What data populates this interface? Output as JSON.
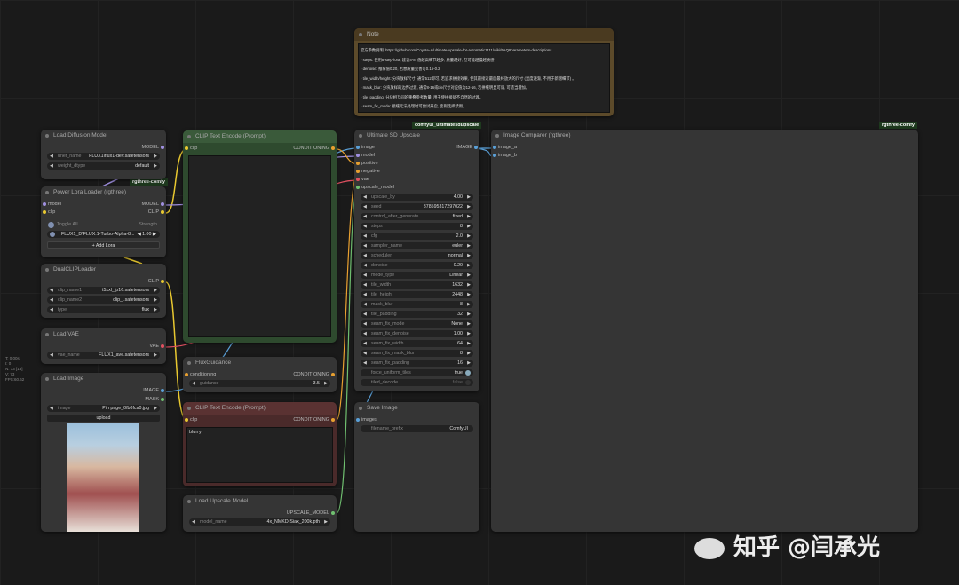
{
  "canvas_info": [
    "T: 0.00s",
    "I: 0",
    "N: 13 [13]",
    "V: 73",
    "FPS:60.62"
  ],
  "note": {
    "title": "Note",
    "lines": [
      "官方参数说明: https://github.com/Coyote-A/ultimate-upscale-for-automatic1111/wiki/FAQ#parameters-descriptions",
      "- steps: 使用8-step-lora, 建议4-8, 值越高细节越多, 质量越好, 但可能越慢越质感",
      "- denoise: 推荐值0.20, 若想质量完善可0.15-0.2",
      "- tile_width/height: 分块放样尺寸, 通常512即可, 若追求拼接效果, 使其最接近最后最终放大的尺寸 (显度逐渐, 不用于新增细节) 。",
      "- mask_blur: 分块放样的边界过渡, 通常8-16或tile尺寸对应值为12-16, 若拼缝明显可调, 可适当增加。",
      "- tile_padding: 分块相互间的重叠参考数量, 用于使拼接处不自然的过渡。",
      "- seam_fix_mode: 接缝无法处理时可尝试开启, 否则选择禁用。"
    ]
  },
  "badges": {
    "rgthree1": "rgthree-comfy",
    "usdu": "comfyui_ultimatesdupscale",
    "rgthree2": "rgthree-comfy"
  },
  "load_diffusion": {
    "title": "Load Diffusion Model",
    "out": "MODEL",
    "w": [
      {
        "k": "unet_name",
        "v": "FLUX1\\flux1-dev.safetensors"
      },
      {
        "k": "weight_dtype",
        "v": "default"
      }
    ]
  },
  "lora": {
    "title": "Power Lora Loader (rgthree)",
    "in": [
      "model",
      "clip"
    ],
    "out": [
      "MODEL",
      "CLIP"
    ],
    "toggle_all": "Toggle All",
    "strength": "Strength",
    "lora_name": "FLUX1_D\\FLUX.1-Turbo-Alpha-8...",
    "lora_strength": "1.00",
    "add": "+ Add Lora"
  },
  "dualclip": {
    "title": "DualCLIPLoader",
    "out": "CLIP",
    "w": [
      {
        "k": "clip_name1",
        "v": "t5xxl_fp16.safetensors"
      },
      {
        "k": "clip_name2",
        "v": "clip_l.safetensors"
      },
      {
        "k": "type",
        "v": "flux"
      }
    ]
  },
  "vae": {
    "title": "Load VAE",
    "out": "VAE",
    "w": [
      {
        "k": "vae_name",
        "v": "FLUX1_ave.safetensors"
      }
    ]
  },
  "load_image": {
    "title": "Load Image",
    "out": [
      "IMAGE",
      "MASK"
    ],
    "w": [
      {
        "k": "image",
        "v": "Pin page_0fb8fca0.jpg"
      }
    ],
    "upload": "upload"
  },
  "clip_pos": {
    "title": "CLIP Text Encode (Prompt)",
    "in": "clip",
    "out": "CONDITIONING",
    "text": ""
  },
  "flux_guidance": {
    "title": "FluxGuidance",
    "in": "conditioning",
    "out": "CONDITIONING",
    "w": [
      {
        "k": "guidance",
        "v": "3.5"
      }
    ]
  },
  "clip_neg": {
    "title": "CLIP Text Encode (Prompt)",
    "in": "clip",
    "out": "CONDITIONING",
    "text": "blurry"
  },
  "upscale_model": {
    "title": "Load Upscale Model",
    "out": "UPSCALE_MODEL",
    "w": [
      {
        "k": "model_name",
        "v": "4x_NMKD-Siax_200k.pth"
      }
    ]
  },
  "usdu": {
    "title": "Ultimate SD Upscale",
    "in": [
      "image",
      "model",
      "positive",
      "negative",
      "vae",
      "upscale_model"
    ],
    "out": "IMAGE",
    "w": [
      {
        "k": "upscale_by",
        "v": "4.00"
      },
      {
        "k": "seed",
        "v": "878595317297022"
      },
      {
        "k": "control_after_generate",
        "v": "fixed"
      },
      {
        "k": "steps",
        "v": "8"
      },
      {
        "k": "cfg",
        "v": "2.0"
      },
      {
        "k": "sampler_name",
        "v": "euler"
      },
      {
        "k": "scheduler",
        "v": "normal"
      },
      {
        "k": "denoise",
        "v": "0.20"
      },
      {
        "k": "mode_type",
        "v": "Linear"
      },
      {
        "k": "tile_width",
        "v": "1632"
      },
      {
        "k": "tile_height",
        "v": "2448"
      },
      {
        "k": "mask_blur",
        "v": "8"
      },
      {
        "k": "tile_padding",
        "v": "32"
      },
      {
        "k": "seam_fix_mode",
        "v": "None"
      },
      {
        "k": "seam_fix_denoise",
        "v": "1.00"
      },
      {
        "k": "seam_fix_width",
        "v": "64"
      },
      {
        "k": "seam_fix_mask_blur",
        "v": "8"
      },
      {
        "k": "seam_fix_padding",
        "v": "16"
      }
    ],
    "toggles": [
      {
        "k": "force_uniform_tiles",
        "v": "true",
        "on": true
      },
      {
        "k": "tiled_decode",
        "v": "false",
        "on": false
      }
    ]
  },
  "save": {
    "title": "Save Image",
    "in": "images",
    "w": [
      {
        "k": "filename_prefix",
        "v": "ComfyUI"
      }
    ]
  },
  "comparer": {
    "title": "Image Comparer (rgthree)",
    "in": [
      "image_a",
      "image_b"
    ]
  },
  "watermark": "知乎 @闫承光",
  "colors": {
    "positive_node": "#2e4a2e",
    "negative_node": "#4a2a2a",
    "note_node": "#5c4a2a",
    "clip_wire": "#e8c830",
    "image_wire": "#5aa0d8",
    "vae_wire": "#e05060"
  }
}
